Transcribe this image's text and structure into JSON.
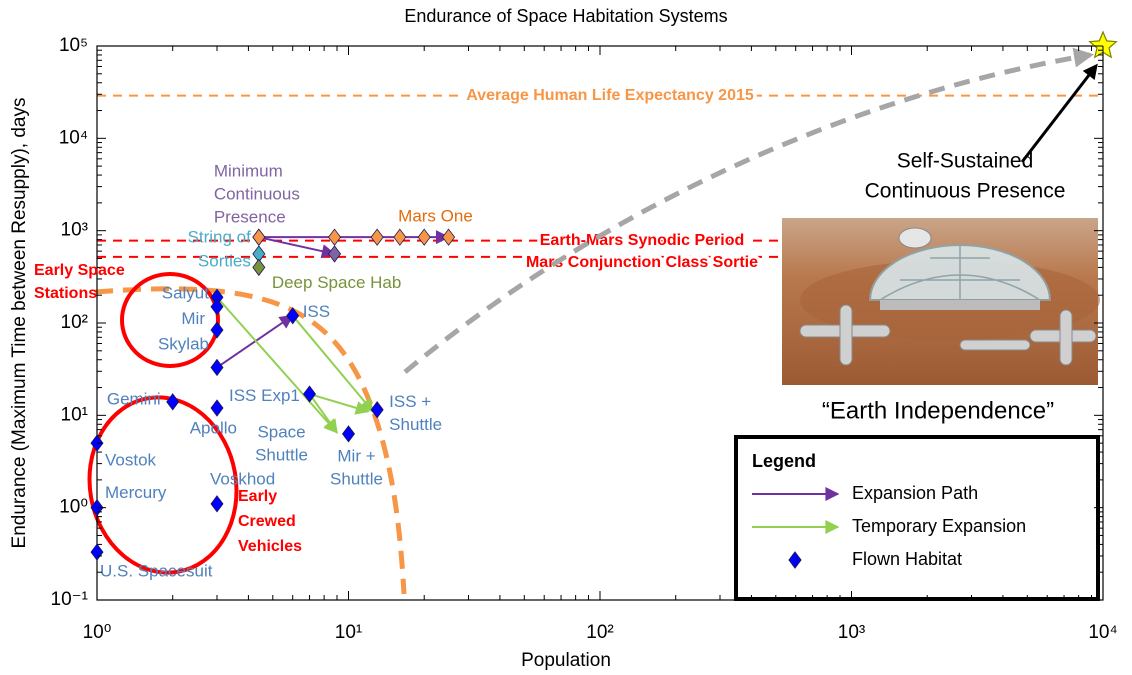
{
  "chart_data": {
    "type": "scatter",
    "title": "Endurance of Space Habitation Systems",
    "xlabel": "Population",
    "ylabel": "Endurance (Maximum Time between Resupply), days",
    "xscale": "log",
    "yscale": "log",
    "xlim": [
      1,
      10000
    ],
    "ylim": [
      0.1,
      100000
    ],
    "xticks": [
      {
        "value": 1,
        "label": "10⁰"
      },
      {
        "value": 10,
        "label": "10¹"
      },
      {
        "value": 100,
        "label": "10²"
      },
      {
        "value": 1000,
        "label": "10³"
      },
      {
        "value": 10000,
        "label": "10⁴"
      }
    ],
    "yticks": [
      {
        "value": 0.1,
        "label": "10⁻¹"
      },
      {
        "value": 1,
        "label": "10⁰"
      },
      {
        "value": 10,
        "label": "10¹"
      },
      {
        "value": 100,
        "label": "10²"
      },
      {
        "value": 1000,
        "label": "10³"
      },
      {
        "value": 10000,
        "label": "10⁴"
      },
      {
        "value": 100000,
        "label": "10⁵"
      }
    ],
    "grid": false,
    "legend": {
      "title": "Legend",
      "position": "lower right"
    },
    "series": [
      {
        "name": "Expansion Path",
        "marker": "arrow",
        "color": "#7030a0",
        "segments": [
          {
            "x": [
              3,
              6
            ],
            "values": [
              33,
              120
            ]
          },
          {
            "x": [
              4.4,
              8.8
            ],
            "values": [
              850,
              560
            ]
          },
          {
            "x": [
              4.4,
              25
            ],
            "values": [
              850,
              850
            ]
          }
        ]
      },
      {
        "name": "Temporary Expansion",
        "marker": "arrow",
        "color": "#92d050",
        "segments": [
          {
            "x": [
              3,
              9
            ],
            "values": [
              190,
              6.5
            ]
          },
          {
            "x": [
              6,
              12.5
            ],
            "values": [
              120,
              11
            ]
          },
          {
            "x": [
              7,
              9
            ],
            "values": [
              17,
              6.5
            ]
          },
          {
            "x": [
              7,
              12
            ],
            "values": [
              17,
              11
            ]
          }
        ]
      },
      {
        "name": "Flown Habitat",
        "marker": "diamond",
        "color": "#0000ff",
        "x": [
          1,
          1,
          1,
          2,
          3,
          3,
          3,
          3,
          3,
          3,
          6,
          7,
          10,
          13
        ],
        "values": [
          0.33,
          1,
          5,
          14,
          12,
          1.1,
          190,
          150,
          84,
          33,
          120,
          17,
          6.3,
          11.5
        ],
        "labels": [
          [
            "U.S. Spacesuit"
          ],
          [
            "Mercury"
          ],
          [
            "Vostok"
          ],
          [
            "Gemini"
          ],
          [
            "Apollo"
          ],
          [
            "Voskhod"
          ],
          [
            "Salyut"
          ],
          [
            "Mir"
          ],
          [
            "Skylab"
          ],
          [
            "ISS Exp1"
          ],
          [
            "ISS"
          ],
          [
            "Space",
            "Shuttle"
          ],
          [
            "Mir +",
            "Shuttle"
          ],
          [
            "ISS +",
            "Shuttle"
          ]
        ]
      }
    ],
    "annotated_points": [
      {
        "label": [
          "Minimum",
          "Continuous",
          "Presence"
        ],
        "marker": "diamond",
        "color": "#8064a2",
        "x": [
          4.4,
          8.8
        ],
        "values": [
          850,
          560
        ]
      },
      {
        "label": [
          "String of",
          "Sorties"
        ],
        "marker": "diamond",
        "color": "#4bacc6",
        "x": [
          4.4
        ],
        "values": [
          560
        ]
      },
      {
        "label": [
          "Deep Space Hab"
        ],
        "marker": "diamond",
        "color": "#77933c",
        "x": [
          4.4
        ],
        "values": [
          400
        ]
      },
      {
        "label": [
          "Mars One"
        ],
        "marker": "diamond",
        "color": "#f79646",
        "x": [
          4.4,
          8.8,
          13,
          16,
          20,
          25
        ],
        "values": [
          850,
          850,
          850,
          850,
          850,
          850
        ]
      },
      {
        "label": [
          "Self-Sustained",
          "Continuous Presence"
        ],
        "marker": "star",
        "color": "#ffff00",
        "x": [
          10000
        ],
        "values": [
          100000
        ]
      }
    ],
    "reference_lines": [
      {
        "value": 29000,
        "label": "Average Human Life Expectancy 2015",
        "color": "#f79646"
      },
      {
        "value": 780,
        "label": "Earth-Mars Synodic Period",
        "color": "#ff0000"
      },
      {
        "value": 520,
        "label": "Mars Conjunction Class Sortie",
        "color": "#ff0000"
      }
    ],
    "annotations": [
      [
        "Early Space",
        "Stations"
      ],
      [
        "Early",
        "Crewed",
        "Vehicles"
      ],
      [
        "“Earth Independence”"
      ]
    ]
  }
}
